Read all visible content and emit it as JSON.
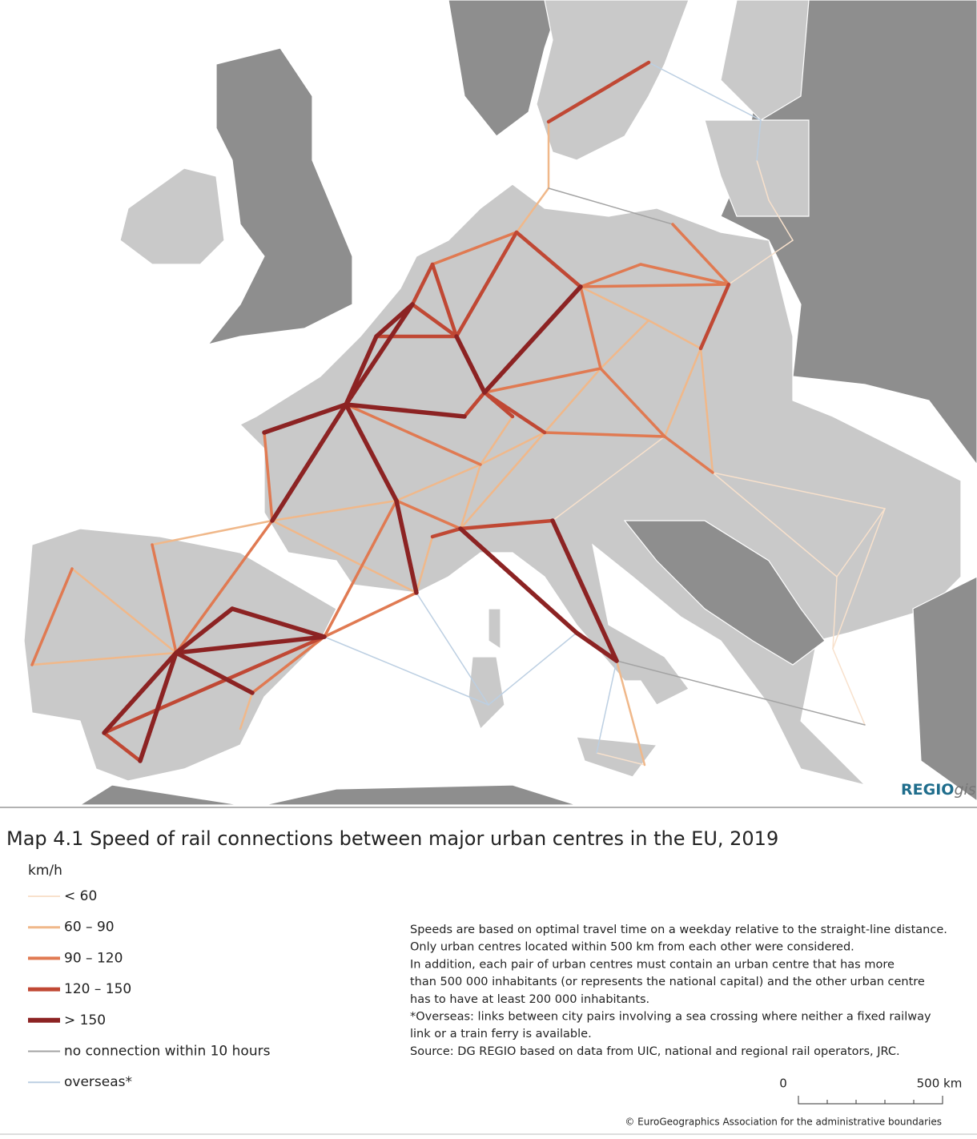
{
  "map": {
    "logo": {
      "main": "REGIO",
      "suffix": "gis"
    },
    "title": "Map 4.1 Speed of rail connections between major urban centres in the EU, 2019",
    "legend": {
      "unit": "km/h",
      "items": [
        {
          "label": "< 60",
          "color": "#f8e1cc"
        },
        {
          "label": "60 – 90",
          "color": "#f0b88a"
        },
        {
          "label": "90 – 120",
          "color": "#e07a52"
        },
        {
          "label": "120 – 150",
          "color": "#c04834"
        },
        {
          "label": "> 150",
          "color": "#8c2323"
        },
        {
          "label": "no connection within 10 hours",
          "color": "#a3a3a3"
        },
        {
          "label": "overseas*",
          "color": "#bccfe2"
        }
      ]
    },
    "notes": [
      "Speeds are based on optimal travel time on a weekday relative to the straight-line distance.",
      "Only urban centres located within 500 km from each other were considered.",
      "In addition, each pair of urban centres must contain an urban centre that has more",
      "than 500 000 inhabitants (or represents the national capital) and the other urban centre",
      "has to have at least 200 000 inhabitants.",
      "*Overseas: links between city pairs involving a sea crossing where neither a fixed railway",
      "link or a train ferry is available.",
      "Source: DG REGIO based on data from UIC, national and regional rail operators, JRC."
    ],
    "scale": {
      "start": "0",
      "end": "500 km"
    },
    "copyright": "© EuroGeographics Association for the administrative boundaries"
  }
}
